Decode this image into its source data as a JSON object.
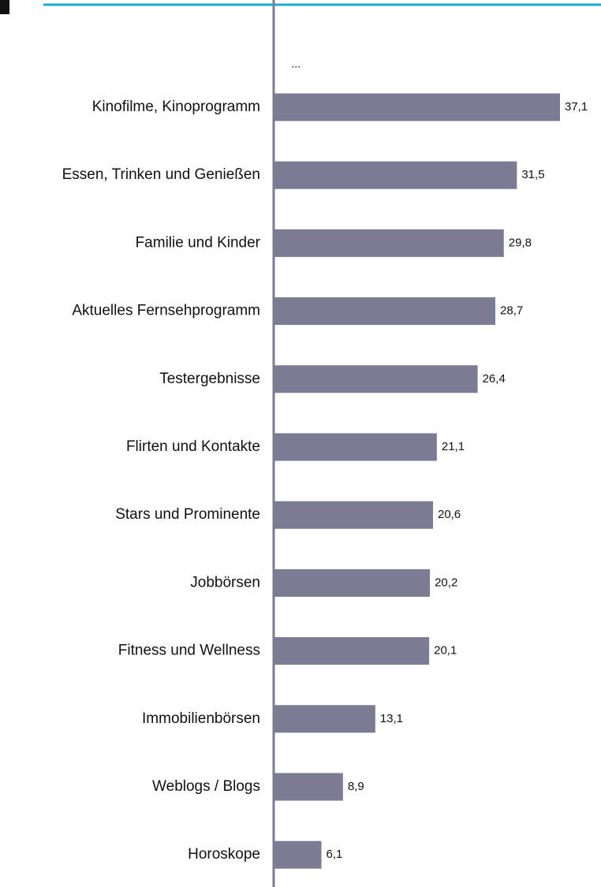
{
  "chart_data": {
    "type": "hbar",
    "annotation": "...",
    "categories": [
      "Kinofilme, Kinoprogramm",
      "Essen, Trinken und Genießen",
      "Familie und Kinder",
      "Aktuelles Fernsehprogramm",
      "Testergebnisse",
      "Flirten und Kontakte",
      "Stars und Prominente",
      "Jobbörsen",
      "Fitness und Wellness",
      "Immobilienbörsen",
      "Weblogs / Blogs",
      "Horoskope"
    ],
    "values": [
      37.1,
      31.5,
      29.8,
      28.7,
      26.4,
      21.1,
      20.6,
      20.2,
      20.1,
      13.1,
      8.9,
      6.1
    ],
    "value_labels": [
      "37,1",
      "31,5",
      "29,8",
      "28,7",
      "26,4",
      "21,1",
      "20,6",
      "20,2",
      "20,1",
      "13,1",
      "8,9",
      "6,1"
    ],
    "color": "#7b7b93"
  }
}
